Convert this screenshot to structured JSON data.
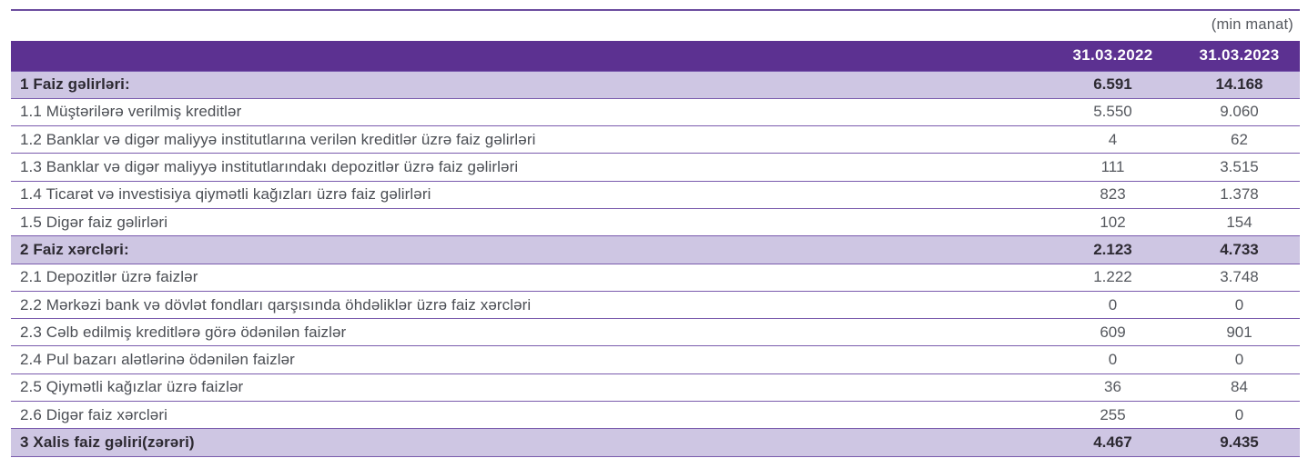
{
  "unit_note": "(min manat)",
  "colors": {
    "header_bg": "#5c3191",
    "highlight_bg": "#cec6e3",
    "row_border": "#7a5bad",
    "top_rule": "#6c4d9f",
    "text_regular": "#4b4e54",
    "text_bold": "#2d2a32"
  },
  "table": {
    "columns": {
      "label": "",
      "col_2022": "31.03.2022",
      "col_2023": "31.03.2023"
    },
    "rows": [
      {
        "label": "1 Faiz gəlirləri:",
        "v2022": "6.591",
        "v2023": "14.168",
        "bold": true
      },
      {
        "label": "1.1 Müştərilərə verilmiş kreditlər",
        "v2022": "5.550",
        "v2023": "9.060",
        "bold": false
      },
      {
        "label": "1.2 Banklar və digər maliyyə institutlarına verilən kreditlər üzrə faiz gəlirləri",
        "v2022": "4",
        "v2023": "62",
        "bold": false
      },
      {
        "label": "1.3 Banklar və digər maliyyə institutlarındakı depozitlər üzrə faiz gəlirləri",
        "v2022": "111",
        "v2023": "3.515",
        "bold": false
      },
      {
        "label": "1.4 Ticarət və investisiya qiymətli kağızları üzrə faiz gəlirləri",
        "v2022": "823",
        "v2023": "1.378",
        "bold": false
      },
      {
        "label": "1.5 Digər faiz gəlirləri",
        "v2022": "102",
        "v2023": "154",
        "bold": false
      },
      {
        "label": "2 Faiz xərcləri:",
        "v2022": "2.123",
        "v2023": "4.733",
        "bold": true
      },
      {
        "label": "2.1 Depozitlər üzrə faizlər",
        "v2022": "1.222",
        "v2023": "3.748",
        "bold": false
      },
      {
        "label": "2.2 Mərkəzi bank və dövlət fondları qarşısında öhdəliklər üzrə faiz xərcləri",
        "v2022": "0",
        "v2023": "0",
        "bold": false
      },
      {
        "label": "2.3 Cəlb edilmiş kreditlərə görə ödənilən faizlər",
        "v2022": "609",
        "v2023": "901",
        "bold": false
      },
      {
        "label": "2.4 Pul bazarı alətlərinə ödənilən faizlər",
        "v2022": "0",
        "v2023": "0",
        "bold": false
      },
      {
        "label": "2.5 Qiymətli kağızlar üzrə faizlər",
        "v2022": "36",
        "v2023": "84",
        "bold": false
      },
      {
        "label": "2.6 Digər faiz xərcləri",
        "v2022": "255",
        "v2023": "0",
        "bold": false
      },
      {
        "label": "3 Xalis faiz gəliri(zərəri)",
        "v2022": "4.467",
        "v2023": "9.435",
        "bold": true
      }
    ]
  }
}
